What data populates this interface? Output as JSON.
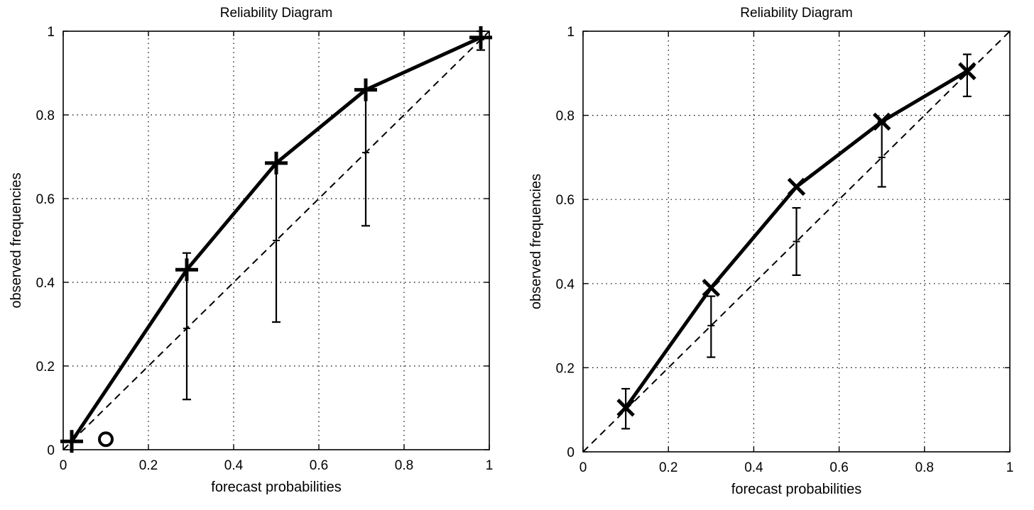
{
  "chart_data": [
    {
      "type": "line",
      "title": "Reliability Diagram",
      "xlabel": "forecast probabilities",
      "ylabel": "observed frequencies",
      "xlim": [
        0,
        1
      ],
      "ylim": [
        0,
        1
      ],
      "grid": true,
      "x_ticks": [
        "0",
        "0.2",
        "0.4",
        "0.6",
        "0.8",
        "1"
      ],
      "y_ticks": [
        "0",
        "0.2",
        "0.4",
        "0.6",
        "0.8",
        "1"
      ],
      "reference_line": {
        "style": "dashed",
        "x": [
          0,
          1
        ],
        "y": [
          0,
          1
        ]
      },
      "series": [
        {
          "marker": "plus",
          "x": [
            0.02,
            0.29,
            0.5,
            0.71,
            0.98
          ],
          "y": [
            0.02,
            0.43,
            0.685,
            0.86,
            0.985
          ]
        }
      ],
      "error_bars": [
        {
          "x": 0.29,
          "low": 0.12,
          "mid": 0.29,
          "high": 0.47
        },
        {
          "x": 0.5,
          "low": 0.305,
          "mid": 0.5,
          "high": 0.685
        },
        {
          "x": 0.71,
          "low": 0.535,
          "mid": 0.71,
          "high": 0.86
        },
        {
          "x": 0.98,
          "low": 0.955,
          "mid": 0.98,
          "high": 1.0
        }
      ],
      "annotations": [
        {
          "marker": "circle",
          "x": 0.1,
          "y": 0.025
        }
      ]
    },
    {
      "type": "line",
      "title": "Reliability Diagram",
      "xlabel": "forecast probabilities",
      "ylabel": "observed frequencies",
      "xlim": [
        0,
        1
      ],
      "ylim": [
        0,
        1
      ],
      "grid": true,
      "x_ticks": [
        "0",
        "0.2",
        "0.4",
        "0.6",
        "0.8",
        "1"
      ],
      "y_ticks": [
        "0",
        "0.2",
        "0.4",
        "0.6",
        "0.8",
        "1"
      ],
      "reference_line": {
        "style": "dashed",
        "x": [
          0,
          1
        ],
        "y": [
          0,
          1
        ]
      },
      "series": [
        {
          "marker": "x",
          "x": [
            0.1,
            0.3,
            0.5,
            0.7,
            0.9
          ],
          "y": [
            0.105,
            0.39,
            0.63,
            0.785,
            0.905
          ]
        }
      ],
      "error_bars": [
        {
          "x": 0.1,
          "low": 0.055,
          "mid": 0.1,
          "high": 0.15
        },
        {
          "x": 0.3,
          "low": 0.225,
          "mid": 0.3,
          "high": 0.37
        },
        {
          "x": 0.5,
          "low": 0.42,
          "mid": 0.5,
          "high": 0.58
        },
        {
          "x": 0.7,
          "low": 0.63,
          "mid": 0.7,
          "high": 0.785
        },
        {
          "x": 0.9,
          "low": 0.845,
          "mid": 0.9,
          "high": 0.945
        }
      ],
      "annotations": []
    }
  ]
}
